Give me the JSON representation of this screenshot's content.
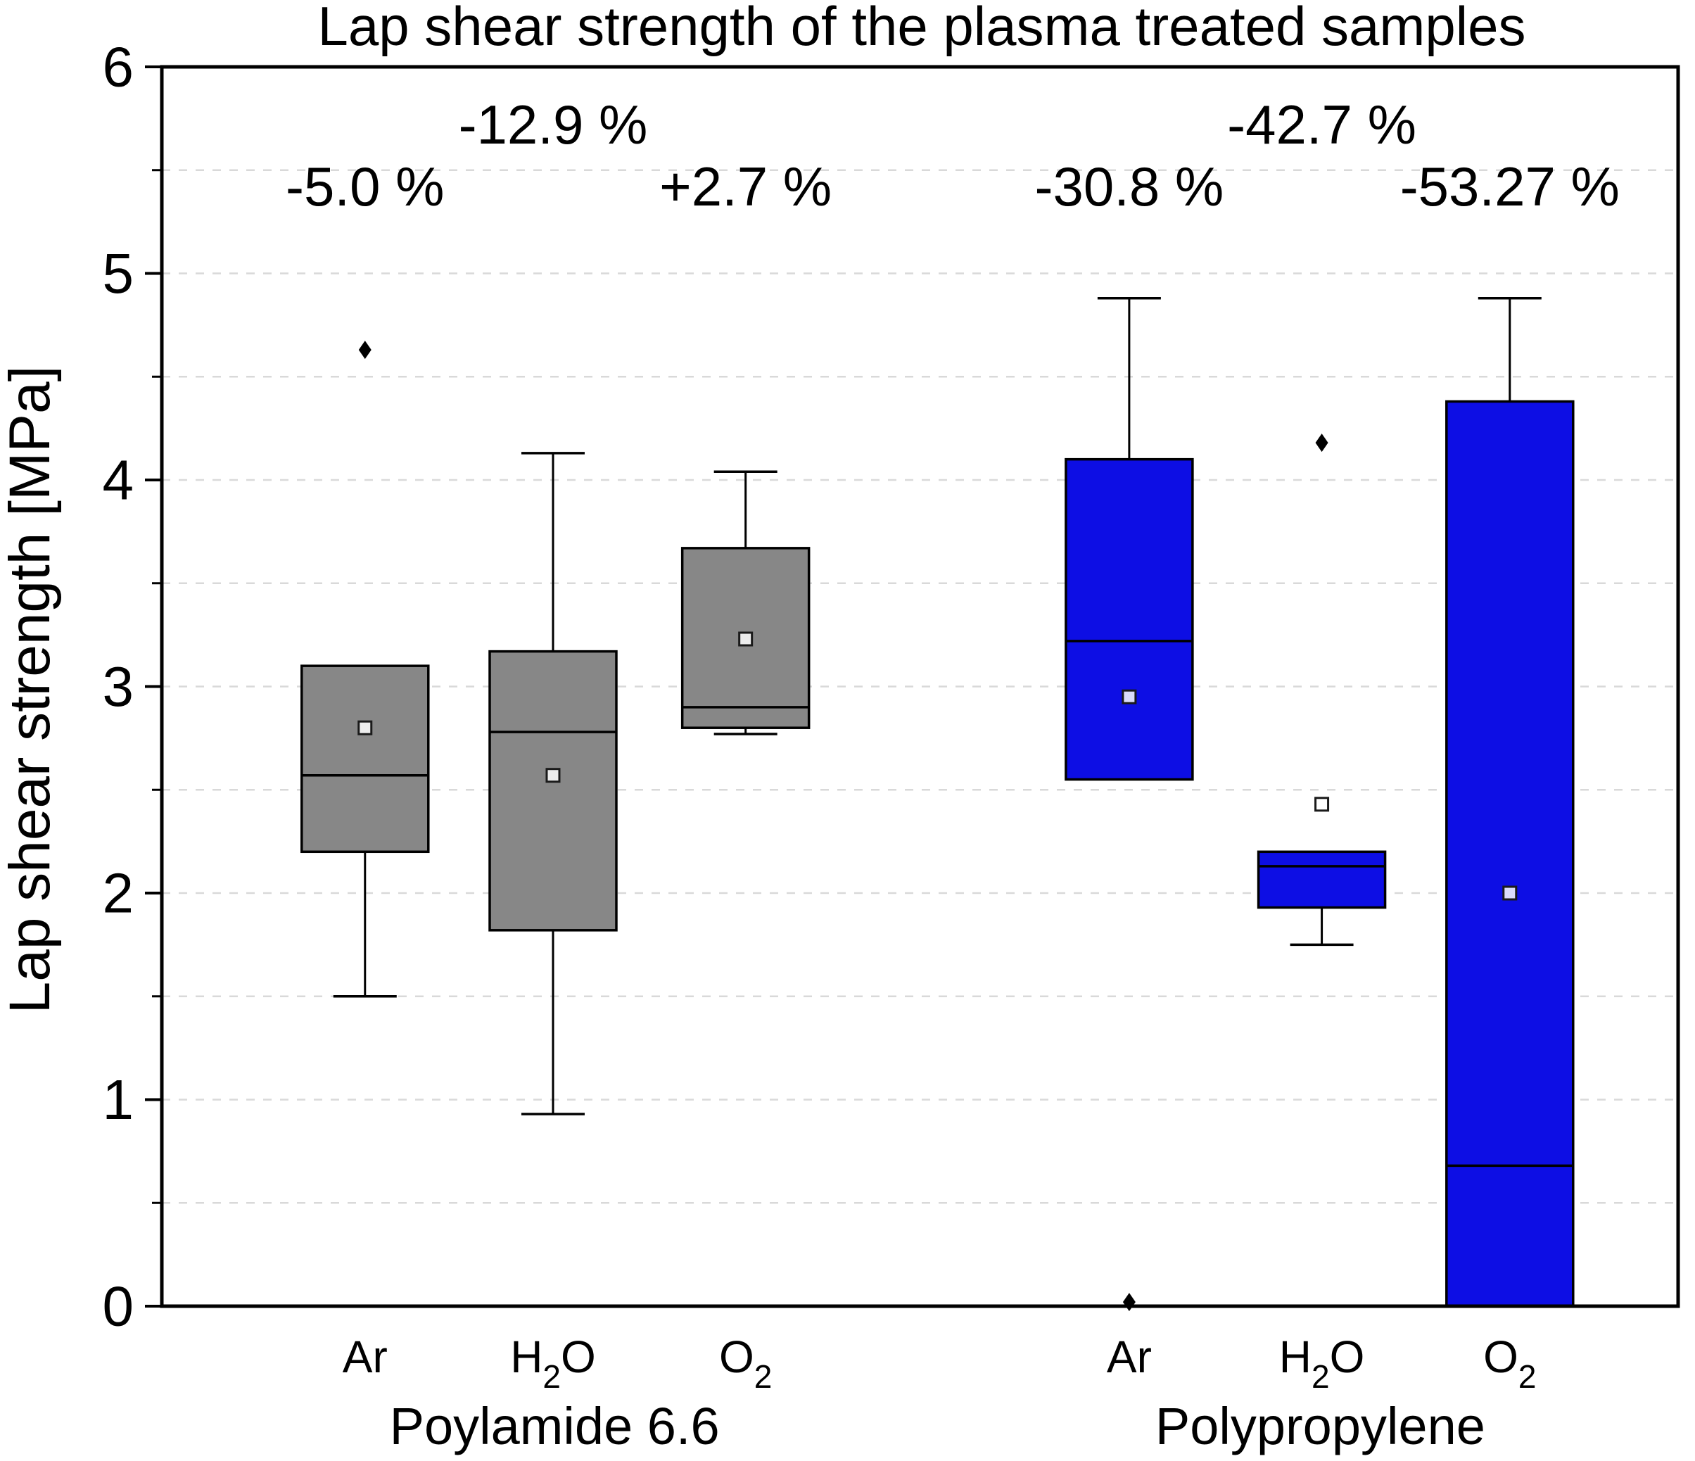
{
  "chart_data": {
    "type": "boxplot",
    "title": "Lap shear strength of the plasma treated samples",
    "ylabel": "Lap shear strength [MPa]",
    "ylim": [
      0,
      6
    ],
    "y_ticks": [
      0,
      1,
      2,
      3,
      4,
      5,
      6
    ],
    "y_major_step": 1,
    "y_minor_step": 0.5,
    "grid": {
      "show": true,
      "step": 0.5,
      "style": "dashed",
      "color": "#d9d9d9"
    },
    "legend": "none",
    "groups": [
      {
        "label": "Poylamide 6.6",
        "box_color": "#878787",
        "boxes": [
          {
            "category": "Ar",
            "x_frac": 0.134,
            "q1": 2.2,
            "median": 2.57,
            "q3": 3.1,
            "whisker_low": 1.5,
            "whisker_high": 3.1,
            "mean": 2.8,
            "outliers": [
              4.63
            ],
            "annotation": "-5.0 %",
            "annotation_y": 5.42
          },
          {
            "category": "H2O",
            "x_frac": 0.258,
            "q1": 1.82,
            "median": 2.78,
            "q3": 3.17,
            "whisker_low": 0.93,
            "whisker_high": 4.13,
            "mean": 2.57,
            "outliers": [],
            "annotation": "-12.9 %",
            "annotation_y": 5.72
          },
          {
            "category": "O2",
            "x_frac": 0.385,
            "q1": 2.8,
            "median": 2.9,
            "q3": 3.67,
            "whisker_low": 2.77,
            "whisker_high": 4.04,
            "mean": 3.23,
            "outliers": [],
            "annotation": "+2.7 %",
            "annotation_y": 5.42
          }
        ]
      },
      {
        "label": "Polypropylene",
        "box_color": "#0d0ee4",
        "boxes": [
          {
            "category": "Ar",
            "x_frac": 0.638,
            "q1": 2.55,
            "median": 3.22,
            "q3": 4.1,
            "whisker_low": 2.55,
            "whisker_high": 4.88,
            "mean": 2.95,
            "outliers": [
              0.02
            ],
            "annotation": "-30.8 %",
            "annotation_y": 5.42
          },
          {
            "category": "H2O",
            "x_frac": 0.765,
            "q1": 1.93,
            "median": 2.13,
            "q3": 2.2,
            "whisker_low": 1.75,
            "whisker_high": 2.2,
            "mean": 2.43,
            "outliers": [
              4.18
            ],
            "annotation": "-42.7 %",
            "annotation_y": 5.72
          },
          {
            "category": "O2",
            "x_frac": 0.889,
            "q1": 0.0,
            "median": 0.68,
            "q3": 4.38,
            "whisker_low": 0.0,
            "whisker_high": 4.88,
            "mean": 2.0,
            "outliers": [],
            "annotation": "-53.27 %",
            "annotation_y": 5.42
          }
        ]
      }
    ]
  }
}
